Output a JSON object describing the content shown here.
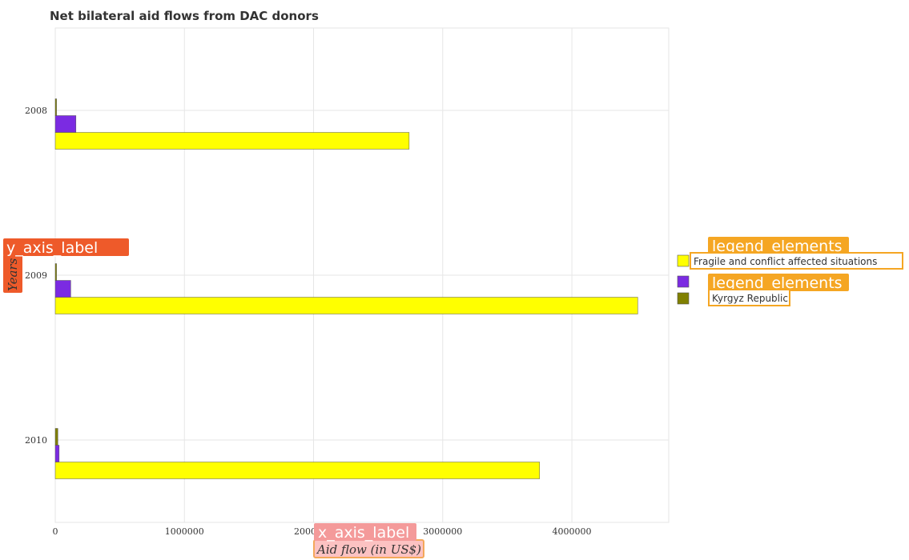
{
  "chart_data": {
    "type": "bar",
    "orientation": "horizontal",
    "title": "Net bilateral aid flows from DAC donors",
    "xlabel": "Aid flow (in US$)",
    "ylabel": "Years",
    "x_axis_overlay_tag": "x_axis_label",
    "y_axis_overlay_tag": "y_axis_label",
    "legend_overlay_tag": "legend_elements",
    "categories": [
      "2008",
      "2009",
      "2010"
    ],
    "xlim": [
      0,
      4750000
    ],
    "x_ticks": [
      0,
      1000000,
      2000000,
      3000000,
      4000000
    ],
    "x_tick_labels": [
      "0",
      "1000000",
      "2000000",
      "3000000",
      "4000000"
    ],
    "grid": true,
    "legend_position": "right",
    "series": [
      {
        "name": "Fragile and conflict affected situations",
        "color": "#ffff00",
        "values": [
          2740000,
          4510000,
          3750000
        ]
      },
      {
        "name": "",
        "color": "#7b2be2",
        "values": [
          160000,
          120000,
          30000
        ]
      },
      {
        "name": "Kyrgyz Republic",
        "color": "#808000",
        "values": [
          10000,
          10000,
          20000
        ]
      }
    ]
  }
}
